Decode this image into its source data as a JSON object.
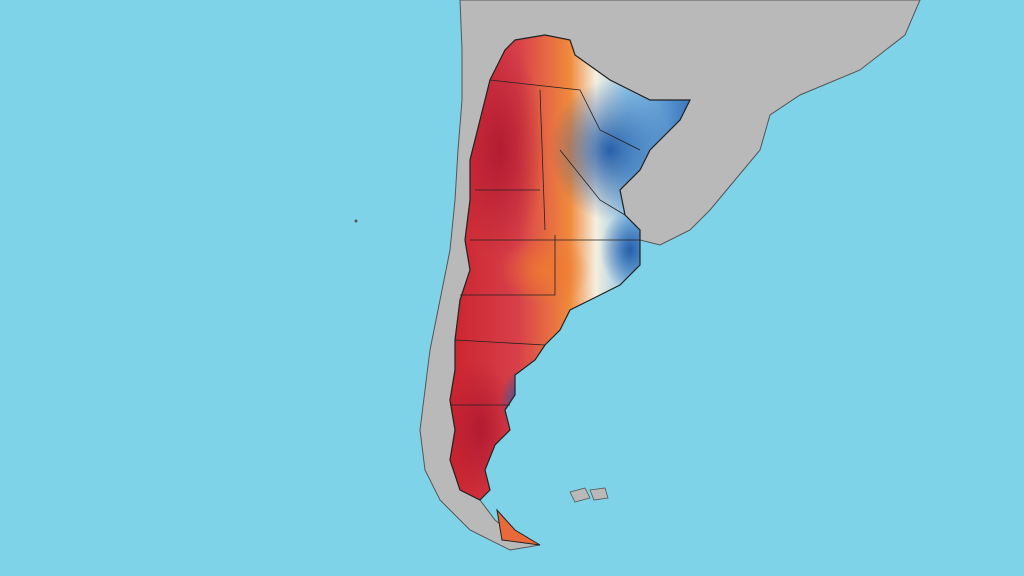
{
  "map": {
    "colors": {
      "ocean": "#7fd3e8",
      "land": "#b9b9b9",
      "hot": "#c8202a",
      "warm": "#f08a3c",
      "neutral": "#f4f1e6",
      "cool": "#8cc4e8",
      "cold": "#2c6bb8",
      "borders": "#222222"
    }
  }
}
